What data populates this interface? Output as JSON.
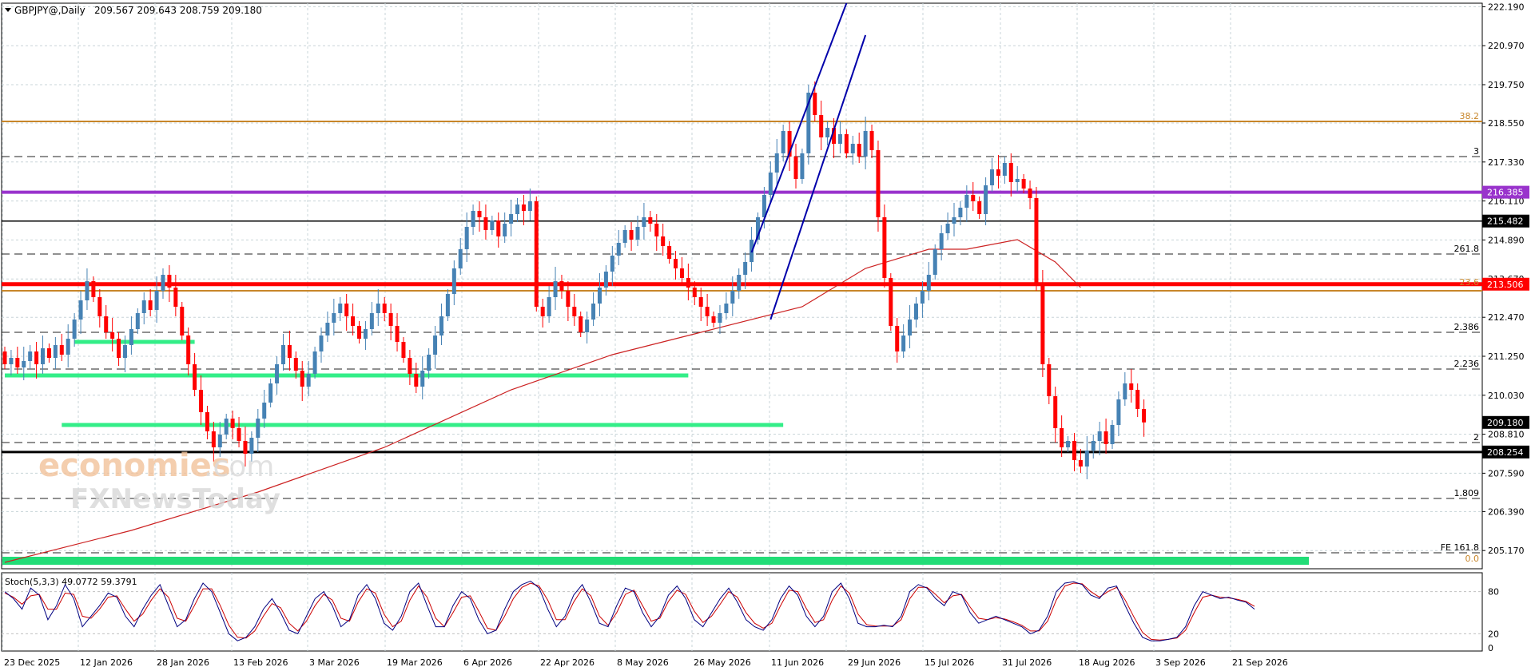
{
  "header": {
    "symbol": "GBPJPY@,Daily",
    "ohlc": "209.567 209.643 208.759 209.180"
  },
  "chart_data": {
    "type": "candlestick",
    "y_ticks": [
      "222.190",
      "220.970",
      "219.750",
      "218.550",
      "217.330",
      "216.110",
      "214.890",
      "213.670",
      "212.470",
      "211.250",
      "210.030",
      "208.810",
      "207.590",
      "206.390",
      "205.170"
    ],
    "ylim": [
      204.6,
      222.3
    ],
    "x_labels": [
      "23 Dec 2025",
      "12 Jan 2026",
      "28 Jan 2026",
      "13 Feb 2026",
      "3 Mar 2026",
      "19 Mar 2026",
      "6 Apr 2026",
      "22 Apr 2026",
      "8 May 2026",
      "26 May 2026",
      "11 Jun 2026",
      "29 Jun 2026",
      "15 Jul 2026",
      "31 Jul 2026",
      "18 Aug 2026",
      "3 Sep 2026",
      "21 Sep 2026"
    ],
    "price_badges": [
      {
        "value": 216.385,
        "label": "216.385",
        "color": "#9933cc"
      },
      {
        "value": 215.482,
        "label": "215.482",
        "color": "#000000"
      },
      {
        "value": 213.506,
        "label": "213.506",
        "color": "#ff0000"
      },
      {
        "value": 209.18,
        "label": "209.180",
        "color": "#000000"
      },
      {
        "value": 208.254,
        "label": "208.254",
        "color": "#000000"
      }
    ],
    "fib_labels": [
      {
        "value": 218.6,
        "label": "38.2",
        "color": "#c8862a"
      },
      {
        "value": 217.5,
        "label": "3",
        "color": "#000000"
      },
      {
        "value": 214.45,
        "label": "261.8",
        "color": "#000000"
      },
      {
        "value": 213.4,
        "label": "23.6",
        "color": "#c8862a"
      },
      {
        "value": 212.0,
        "label": "2.386",
        "color": "#000000"
      },
      {
        "value": 210.85,
        "label": "2.236",
        "color": "#000000"
      },
      {
        "value": 208.55,
        "label": "2",
        "color": "#000000"
      },
      {
        "value": 206.8,
        "label": "1.809",
        "color": "#000000"
      },
      {
        "value": 205.1,
        "label": "FE 161.8",
        "color": "#000000"
      },
      {
        "value": 204.75,
        "label": "0.0",
        "color": "#c8862a"
      }
    ],
    "horizontal_levels": [
      {
        "value": 218.6,
        "color": "#c8862a",
        "style": "solid",
        "width": 2
      },
      {
        "value": 217.5,
        "color": "#222222",
        "style": "dashed",
        "width": 1
      },
      {
        "value": 216.385,
        "color": "#9933cc",
        "style": "solid",
        "width": 4
      },
      {
        "value": 215.482,
        "color": "#000000",
        "style": "solid",
        "width": 1.5
      },
      {
        "value": 214.45,
        "color": "#222222",
        "style": "dashed",
        "width": 1
      },
      {
        "value": 213.506,
        "color": "#ff0000",
        "style": "solid",
        "width": 5
      },
      {
        "value": 213.3,
        "color": "#c8862a",
        "style": "solid",
        "width": 2
      },
      {
        "value": 212.0,
        "color": "#222222",
        "style": "dashed",
        "width": 1
      },
      {
        "value": 210.85,
        "color": "#222222",
        "style": "dashed",
        "width": 1
      },
      {
        "value": 208.55,
        "color": "#222222",
        "style": "dashed",
        "width": 1
      },
      {
        "value": 208.254,
        "color": "#000000",
        "style": "solid",
        "width": 3
      },
      {
        "value": 206.8,
        "color": "#222222",
        "style": "dashed",
        "width": 1
      },
      {
        "value": 205.1,
        "color": "#222222",
        "style": "dashed",
        "width": 1
      }
    ],
    "support_bands": [
      {
        "from_bar": 11,
        "to_bar": 30,
        "value": 211.7
      },
      {
        "from_bar": 0,
        "to_bar": 108,
        "value": 210.65
      },
      {
        "from_bar": 9,
        "to_bar": 123,
        "value": 209.1
      }
    ],
    "ohlc_start": 211.4,
    "closes": [
      211.0,
      211.2,
      210.9,
      211.1,
      211.4,
      211.0,
      211.5,
      211.2,
      211.6,
      211.3,
      211.8,
      212.4,
      213.0,
      213.6,
      213.1,
      212.5,
      212.0,
      211.8,
      211.2,
      211.6,
      212.1,
      212.6,
      213.0,
      212.7,
      213.3,
      213.8,
      213.4,
      212.8,
      211.9,
      211.0,
      210.2,
      209.5,
      208.9,
      208.4,
      208.8,
      209.3,
      209.0,
      208.6,
      208.2,
      208.7,
      209.3,
      209.8,
      210.4,
      211.0,
      211.6,
      211.2,
      210.8,
      210.3,
      210.7,
      211.4,
      211.9,
      212.3,
      212.6,
      212.9,
      212.5,
      212.2,
      211.8,
      212.1,
      212.6,
      212.9,
      212.6,
      212.2,
      211.7,
      211.2,
      210.7,
      210.3,
      210.8,
      211.3,
      211.9,
      212.5,
      213.2,
      214.0,
      214.6,
      215.3,
      215.8,
      215.6,
      215.2,
      215.5,
      215.0,
      215.4,
      215.7,
      216.0,
      215.8,
      216.1,
      212.8,
      212.5,
      213.1,
      213.6,
      213.3,
      212.8,
      212.5,
      212.0,
      212.4,
      212.9,
      213.4,
      213.9,
      214.4,
      214.8,
      215.2,
      214.9,
      215.3,
      215.6,
      215.4,
      215.0,
      214.7,
      214.3,
      214.0,
      213.7,
      213.4,
      213.1,
      212.8,
      212.5,
      212.3,
      212.6,
      212.9,
      213.3,
      213.8,
      214.2,
      214.9,
      215.6,
      216.3,
      217.0,
      217.6,
      218.3,
      217.5,
      216.8,
      217.6,
      219.5,
      218.8,
      218.1,
      218.4,
      217.9,
      218.2,
      217.6,
      217.9,
      217.5,
      218.3,
      217.7,
      215.6,
      213.7,
      212.2,
      211.4,
      211.9,
      212.4,
      212.9,
      213.3,
      213.8,
      214.6,
      215.1,
      215.4,
      215.6,
      215.9,
      216.3,
      216.1,
      215.7,
      216.6,
      217.1,
      216.9,
      217.3,
      216.7,
      216.8,
      216.5,
      216.2,
      213.5,
      211.0,
      210.0,
      209.0,
      208.4,
      208.6,
      208.0,
      207.8,
      208.3,
      208.6,
      208.9,
      208.5,
      209.1,
      209.9,
      210.4,
      210.2,
      209.6,
      209.18
    ],
    "ma_points": [
      [
        0,
        204.8
      ],
      [
        20,
        205.8
      ],
      [
        40,
        207.0
      ],
      [
        60,
        208.4
      ],
      [
        80,
        210.2
      ],
      [
        96,
        211.3
      ],
      [
        110,
        212.0
      ],
      [
        126,
        212.8
      ],
      [
        136,
        214.0
      ],
      [
        146,
        214.6
      ],
      [
        152,
        214.6
      ],
      [
        160,
        214.9
      ],
      [
        166,
        214.2
      ],
      [
        170,
        213.4
      ]
    ],
    "channel": {
      "upper": [
        [
          118,
          214.5
        ],
        [
          133,
          222.3
        ]
      ],
      "lower": [
        [
          121,
          212.4
        ],
        [
          136,
          221.3
        ]
      ]
    },
    "stoch_label": "Stoch(5,3,3) 49.0772 59.3791",
    "stoch_ticks": [
      "80",
      "20",
      "0"
    ],
    "stoch_k": [
      80,
      70,
      55,
      85,
      75,
      40,
      60,
      90,
      70,
      30,
      45,
      60,
      78,
      72,
      45,
      30,
      55,
      75,
      90,
      60,
      30,
      40,
      70,
      92,
      80,
      50,
      20,
      10,
      15,
      30,
      55,
      70,
      50,
      25,
      20,
      45,
      70,
      80,
      60,
      30,
      40,
      75,
      90,
      70,
      35,
      25,
      45,
      80,
      92,
      60,
      30,
      30,
      60,
      80,
      70,
      40,
      20,
      25,
      55,
      80,
      90,
      95,
      85,
      55,
      30,
      45,
      75,
      90,
      65,
      35,
      30,
      60,
      85,
      80,
      50,
      30,
      45,
      75,
      88,
      70,
      40,
      30,
      50,
      70,
      85,
      65,
      40,
      30,
      25,
      40,
      70,
      88,
      75,
      45,
      30,
      45,
      80,
      92,
      70,
      35,
      30,
      30,
      32,
      30,
      45,
      80,
      90,
      85,
      70,
      60,
      80,
      75,
      50,
      35,
      40,
      45,
      40,
      35,
      30,
      20,
      25,
      45,
      80,
      92,
      94,
      90,
      75,
      70,
      85,
      88,
      60,
      35,
      15,
      10,
      10,
      12,
      15,
      30,
      60,
      80,
      75,
      70,
      72,
      68,
      65,
      55
    ],
    "stoch_d": [
      78,
      72,
      62,
      74,
      76,
      55,
      55,
      78,
      76,
      45,
      42,
      55,
      72,
      74,
      55,
      38,
      48,
      68,
      84,
      72,
      42,
      38,
      60,
      84,
      84,
      60,
      32,
      15,
      14,
      24,
      45,
      63,
      57,
      35,
      24,
      38,
      60,
      76,
      68,
      42,
      38,
      65,
      84,
      78,
      48,
      30,
      38,
      68,
      88,
      72,
      42,
      30,
      50,
      72,
      74,
      52,
      28,
      25,
      45,
      70,
      86,
      92,
      88,
      68,
      40,
      40,
      65,
      84,
      74,
      45,
      32,
      50,
      76,
      82,
      60,
      38,
      42,
      66,
      82,
      76,
      52,
      36,
      45,
      62,
      80,
      72,
      50,
      35,
      28,
      35,
      60,
      82,
      80,
      56,
      36,
      40,
      68,
      88,
      78,
      48,
      33,
      31,
      31,
      31,
      40,
      70,
      86,
      86,
      76,
      64,
      74,
      76,
      58,
      42,
      40,
      43,
      41,
      37,
      32,
      24,
      24,
      38,
      68,
      88,
      92,
      91,
      80,
      72,
      80,
      86,
      68,
      44,
      22,
      12,
      11,
      12,
      14,
      25,
      50,
      72,
      75,
      72,
      71,
      69,
      66,
      59
    ],
    "colors": {
      "up": "#4682b4",
      "down": "#ff0000",
      "ma": "#cc2222",
      "channel": "#0000aa",
      "support": "#33ee88",
      "stoch_k": "#000080",
      "stoch_d": "#cc0000"
    }
  },
  "watermark": {
    "line1": "economies",
    "line1_suffix": ".com",
    "line2": "FXNewsToday"
  }
}
